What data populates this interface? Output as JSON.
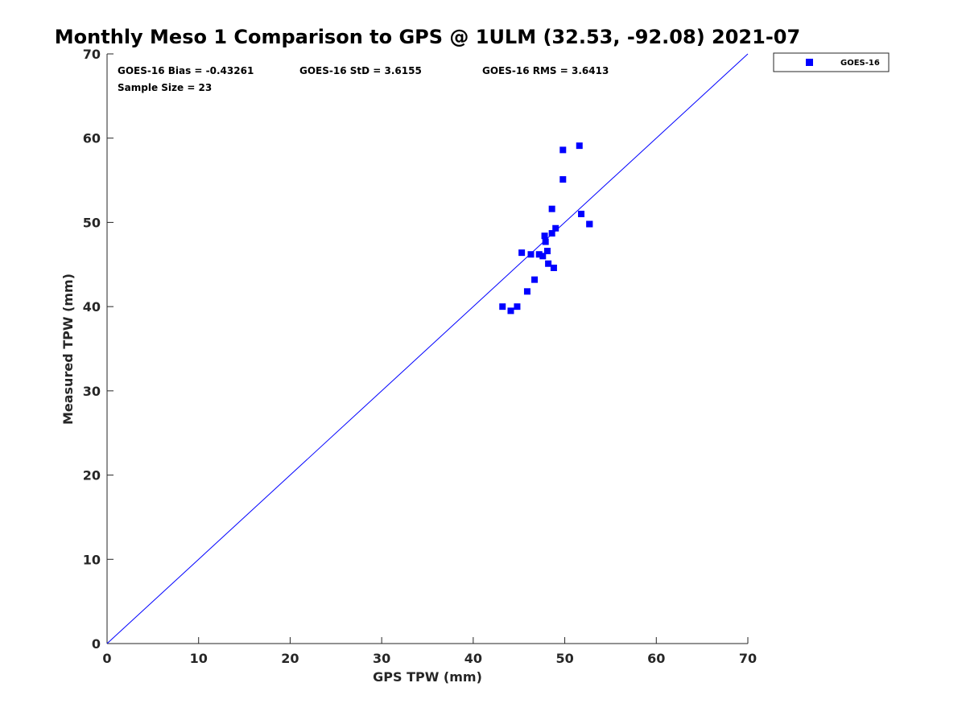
{
  "chart_data": {
    "type": "scatter",
    "title": "Monthly Meso 1 Comparison to GPS @ 1ULM (32.53, -92.08) 2021-07",
    "xlabel": "GPS TPW (mm)",
    "ylabel": "Measured TPW (mm)",
    "xlim": [
      0,
      70
    ],
    "ylim": [
      0,
      70
    ],
    "xticks": [
      "0",
      "10",
      "20",
      "30",
      "40",
      "50",
      "60",
      "70"
    ],
    "yticks": [
      "0",
      "10",
      "20",
      "30",
      "40",
      "50",
      "60",
      "70"
    ],
    "grid": false,
    "legend_position": "outside-top-right",
    "reference_line": {
      "from": [
        0,
        0
      ],
      "to": [
        70,
        70
      ],
      "color": "#0000ff"
    },
    "stats": {
      "bias": "GOES-16 Bias = -0.43261",
      "std": "GOES-16 StD = 3.6155",
      "rms": "GOES-16 RMS = 3.6413",
      "sample_size": "Sample Size = 23"
    },
    "series": [
      {
        "name": "GOES-16",
        "color": "#0000ff",
        "marker": "square",
        "points": [
          [
            43.2,
            40.0
          ],
          [
            44.1,
            39.5
          ],
          [
            44.8,
            40.0
          ],
          [
            45.3,
            46.4
          ],
          [
            45.9,
            41.8
          ],
          [
            46.3,
            46.2
          ],
          [
            46.7,
            43.2
          ],
          [
            47.2,
            46.2
          ],
          [
            47.6,
            46.0
          ],
          [
            47.8,
            48.4
          ],
          [
            47.9,
            47.7
          ],
          [
            48.1,
            46.6
          ],
          [
            48.2,
            45.1
          ],
          [
            48.6,
            48.7
          ],
          [
            48.6,
            51.6
          ],
          [
            48.8,
            44.6
          ],
          [
            49.0,
            49.3
          ],
          [
            49.8,
            58.6
          ],
          [
            49.8,
            55.1
          ],
          [
            51.6,
            59.1
          ],
          [
            51.8,
            51.0
          ],
          [
            52.7,
            49.8
          ],
          [
            52.7,
            49.8
          ]
        ]
      }
    ]
  }
}
